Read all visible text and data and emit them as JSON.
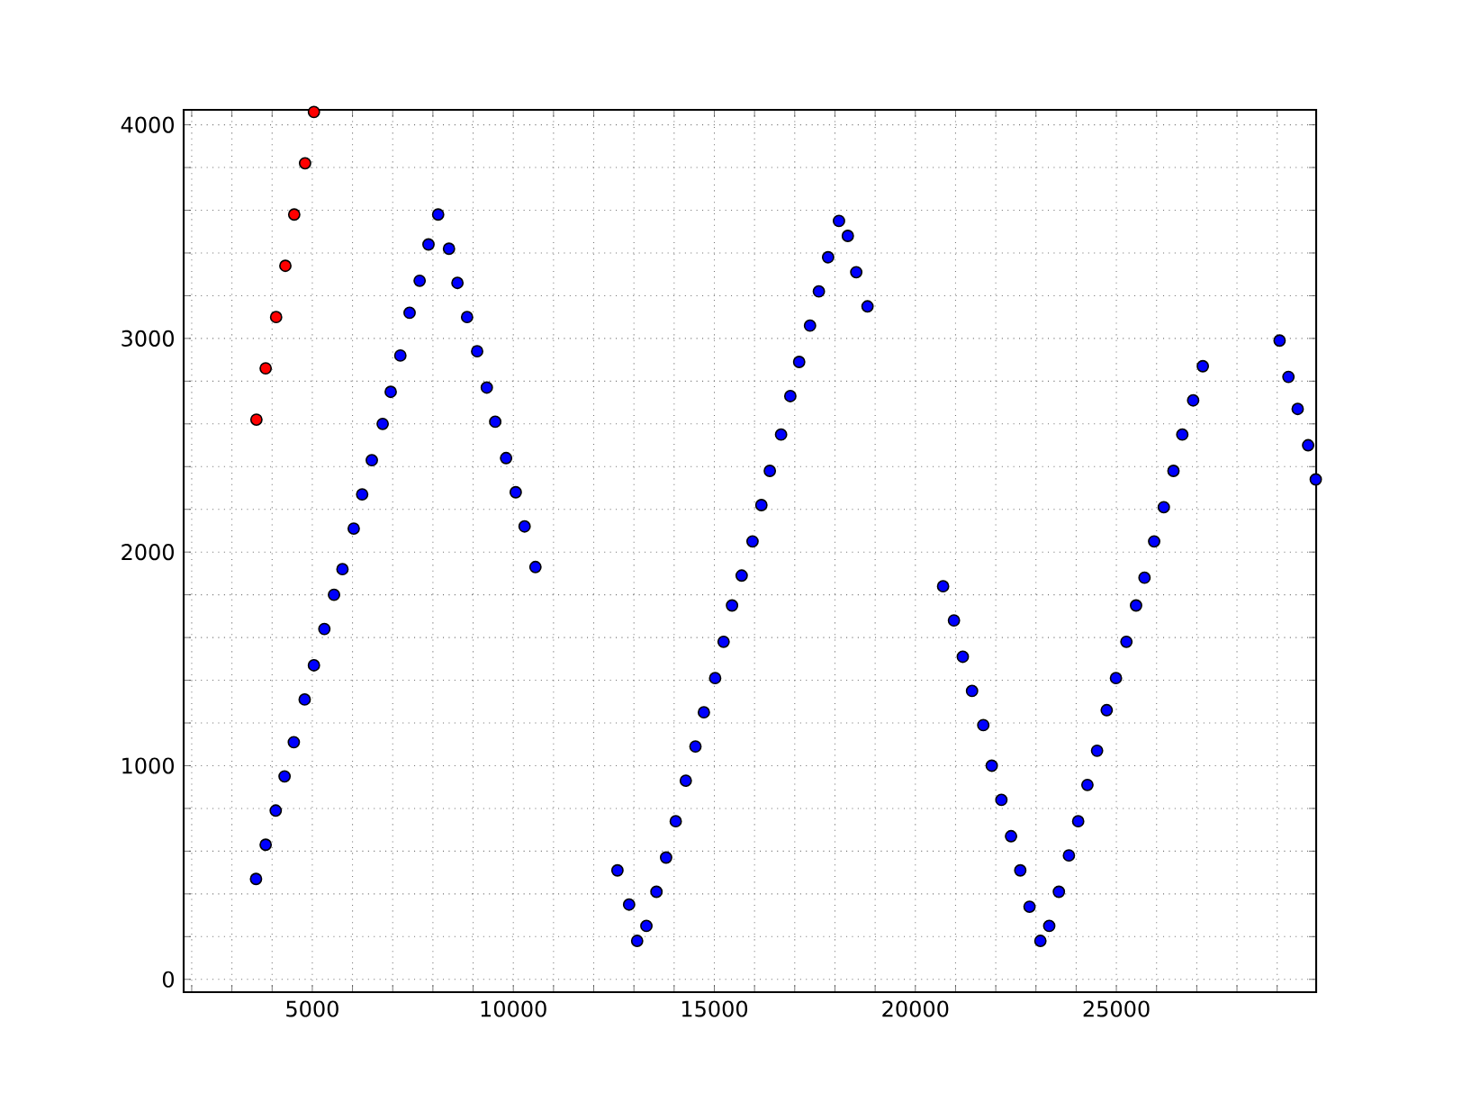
{
  "chart_data": {
    "type": "scatter",
    "marker": "circle",
    "grid": true,
    "xlim": [
      1800,
      29970
    ],
    "ylim": [
      -60,
      4070
    ],
    "xticks": [
      {
        "value": 2000,
        "label": null
      },
      {
        "value": 3000,
        "label": null
      },
      {
        "value": 4000,
        "label": null
      },
      5000,
      {
        "value": 6000,
        "label": null
      },
      {
        "value": 7000,
        "label": null
      },
      {
        "value": 8000,
        "label": null
      },
      {
        "value": 9000,
        "label": null
      },
      10000,
      {
        "value": 11000,
        "label": null
      },
      {
        "value": 12000,
        "label": null
      },
      {
        "value": 13000,
        "label": null
      },
      {
        "value": 14000,
        "label": null
      },
      15000,
      {
        "value": 16000,
        "label": null
      },
      {
        "value": 17000,
        "label": null
      },
      {
        "value": 18000,
        "label": null
      },
      {
        "value": 19000,
        "label": null
      },
      20000,
      {
        "value": 21000,
        "label": null
      },
      {
        "value": 22000,
        "label": null
      },
      {
        "value": 23000,
        "label": null
      },
      {
        "value": 24000,
        "label": null
      },
      25000,
      {
        "value": 26000,
        "label": null
      },
      {
        "value": 27000,
        "label": null
      },
      {
        "value": 28000,
        "label": null
      },
      {
        "value": 29000,
        "label": null
      }
    ],
    "yticks": [
      0,
      {
        "value": 200,
        "label": null
      },
      {
        "value": 400,
        "label": null
      },
      {
        "value": 600,
        "label": null
      },
      {
        "value": 800,
        "label": null
      },
      1000,
      {
        "value": 1200,
        "label": null
      },
      {
        "value": 1400,
        "label": null
      },
      {
        "value": 1600,
        "label": null
      },
      {
        "value": 1800,
        "label": null
      },
      2000,
      {
        "value": 2200,
        "label": null
      },
      {
        "value": 2400,
        "label": null
      },
      {
        "value": 2600,
        "label": null
      },
      {
        "value": 2800,
        "label": null
      },
      3000,
      {
        "value": 3200,
        "label": null
      },
      {
        "value": 3400,
        "label": null
      },
      {
        "value": 3600,
        "label": null
      },
      {
        "value": 3800,
        "label": null
      },
      4000
    ],
    "series": [
      {
        "color": "#ff0000",
        "x": [
          3610,
          3840,
          4100,
          4330,
          4550,
          4820,
          5040
        ],
        "values": [
          2620,
          2860,
          3100,
          3340,
          3580,
          3820,
          4060
        ]
      },
      {
        "color": "#0000ff",
        "x": [
          3600,
          3840,
          4090,
          4310,
          4540,
          4810,
          5040,
          5300,
          5540,
          5750,
          6030,
          6240,
          6480,
          6750,
          6950,
          7190,
          7420,
          7670,
          7890,
          8130,
          8400,
          8610,
          8850,
          9100,
          9340,
          9550,
          9820,
          10060,
          10280,
          10550,
          12590,
          12880,
          13080,
          13310,
          13560,
          13800,
          14040,
          14290,
          14530,
          14740,
          15020,
          15230,
          15440,
          15680,
          15950,
          16170,
          16380,
          16660,
          16890,
          17110,
          17380,
          17600,
          17830,
          18100,
          18320,
          18530,
          18810,
          20690,
          20960,
          21180,
          21410,
          21690,
          21900,
          22140,
          22380,
          22610,
          22840,
          23110,
          23330,
          23570,
          23820,
          24050,
          24280,
          24520,
          24760,
          24990,
          25250,
          25490,
          25700,
          25940,
          26180,
          26420,
          26640,
          26910,
          27150,
          29060,
          29280,
          29510,
          29770,
          29960
        ],
        "values": [
          470,
          630,
          790,
          950,
          1110,
          1310,
          1470,
          1640,
          1800,
          1920,
          2110,
          2270,
          2430,
          2600,
          2750,
          2920,
          3120,
          3270,
          3440,
          3580,
          3420,
          3260,
          3100,
          2940,
          2770,
          2610,
          2440,
          2280,
          2120,
          1930,
          510,
          350,
          180,
          250,
          410,
          570,
          740,
          930,
          1090,
          1250,
          1410,
          1580,
          1750,
          1890,
          2050,
          2220,
          2380,
          2550,
          2730,
          2890,
          3060,
          3220,
          3380,
          3550,
          3480,
          3310,
          3150,
          1840,
          1680,
          1510,
          1350,
          1190,
          1000,
          840,
          670,
          510,
          340,
          180,
          250,
          410,
          580,
          740,
          910,
          1070,
          1260,
          1410,
          1580,
          1750,
          1880,
          2050,
          2210,
          2380,
          2550,
          2710,
          2870,
          2990,
          2820,
          2670,
          2500,
          2340
        ]
      }
    ]
  }
}
